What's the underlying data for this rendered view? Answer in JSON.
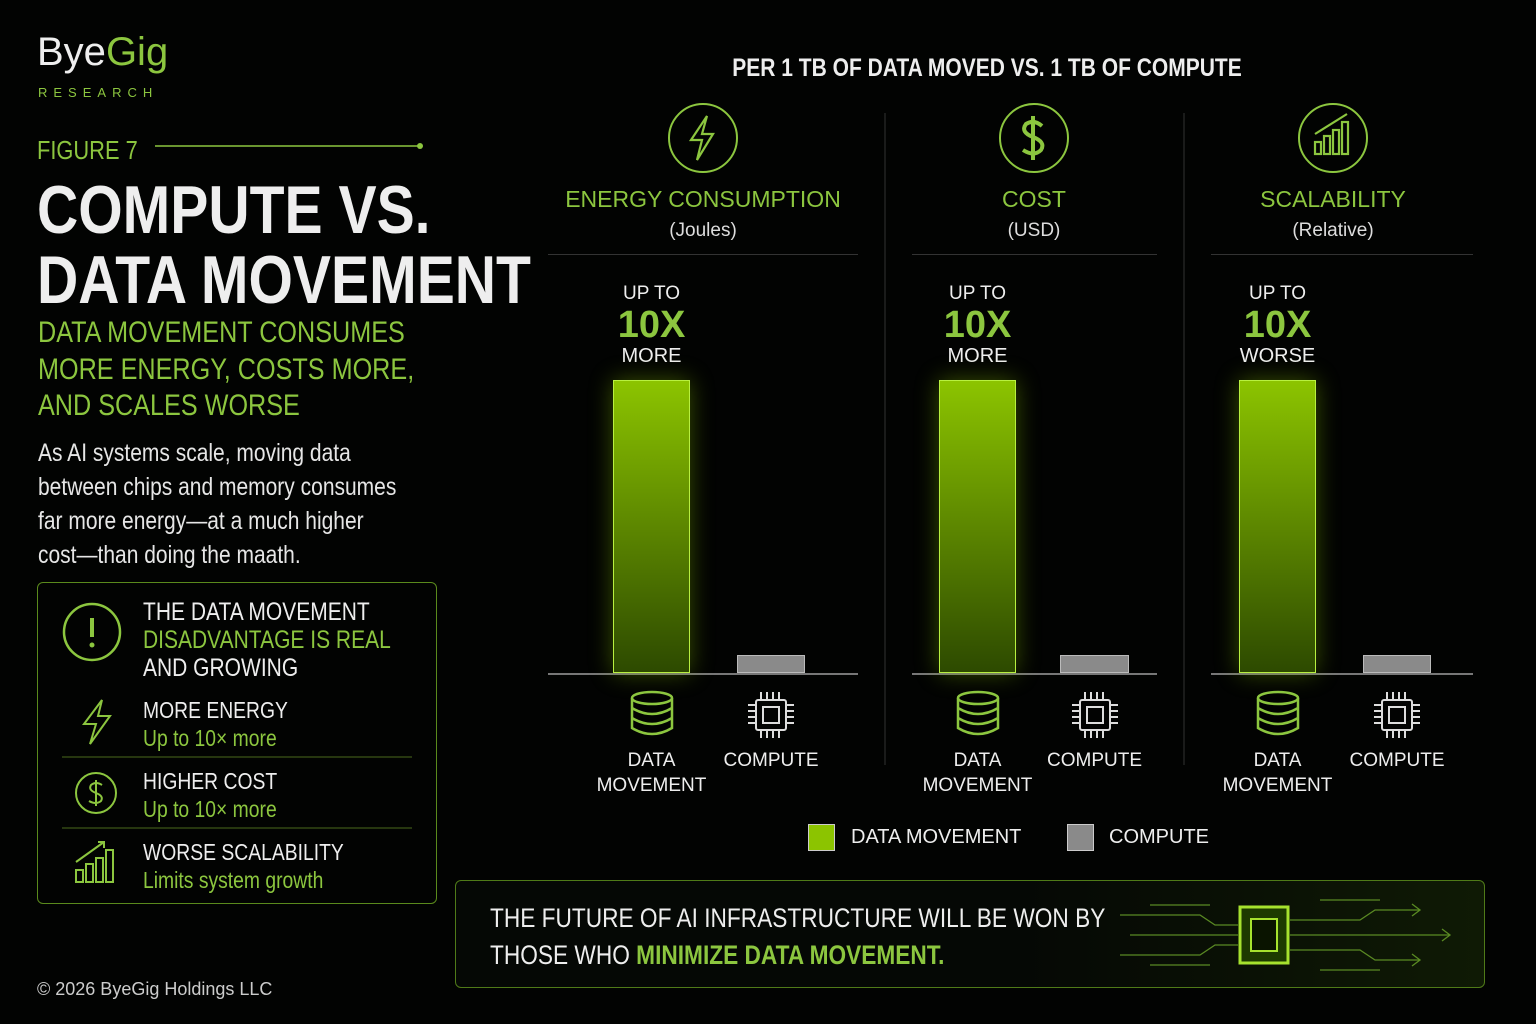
{
  "brand": {
    "name_a": "Bye",
    "name_b": "Gig",
    "tagline": "RESEARCH"
  },
  "figure_label": "FIGURE 7",
  "title_lines": [
    "COMPUTE VS.",
    "DATA MOVEMENT"
  ],
  "subtitle_lines": [
    "DATA MOVEMENT CONSUMES",
    "MORE ENERGY, COSTS MORE,",
    "AND SCALES WORSE"
  ],
  "body_lines": [
    "As AI systems scale, moving data",
    "between chips and memory consumes",
    "far more energy—at a much higher",
    "cost—than doing the maath."
  ],
  "callout": {
    "line1": "THE DATA MOVEMENT",
    "line2": "DISADVANTAGE IS REAL",
    "line3": "AND GROWING",
    "items": [
      {
        "title": "MORE ENERGY",
        "detail": "Up to 10× more"
      },
      {
        "title": "HIGHER COST",
        "detail": "Up to 10× more"
      },
      {
        "title": "WORSE SCALABILITY",
        "detail": "Limits system growth"
      }
    ]
  },
  "chart_heading": "PER 1 TB OF DATA MOVED VS. 1 TB OF COMPUTE",
  "chart_data": [
    {
      "type": "bar",
      "title": "ENERGY CONSUMPTION",
      "subtitle": "(Joules)",
      "annotation": [
        "UP TO",
        "10X",
        "MORE"
      ],
      "categories": [
        "DATA MOVEMENT",
        "COMPUTE"
      ],
      "values": [
        10,
        0.6
      ],
      "colors": [
        "#8cc400",
        "#8a8a8a"
      ]
    },
    {
      "type": "bar",
      "title": "COST",
      "subtitle": "(USD)",
      "annotation": [
        "UP TO",
        "10X",
        "MORE"
      ],
      "categories": [
        "DATA MOVEMENT",
        "COMPUTE"
      ],
      "values": [
        10,
        0.6
      ],
      "colors": [
        "#8cc400",
        "#8a8a8a"
      ]
    },
    {
      "type": "bar",
      "title": "SCALABILITY",
      "subtitle": "(Relative)",
      "annotation": [
        "UP TO",
        "10X",
        "WORSE"
      ],
      "categories": [
        "DATA MOVEMENT",
        "COMPUTE"
      ],
      "values": [
        10,
        0.6
      ],
      "colors": [
        "#8cc400",
        "#8a8a8a"
      ]
    }
  ],
  "legend": [
    {
      "name": "DATA MOVEMENT",
      "color": "#8cc400"
    },
    {
      "name": "COMPUTE",
      "color": "#8a8a8a"
    }
  ],
  "banner": {
    "line1": "THE FUTURE OF AI INFRASTRUCTURE WILL BE WON BY",
    "line2": "THOSE WHO",
    "highlight": "MINIMIZE DATA MOVEMENT."
  },
  "copyright": "© 2026 ByeGig Holdings LLC"
}
